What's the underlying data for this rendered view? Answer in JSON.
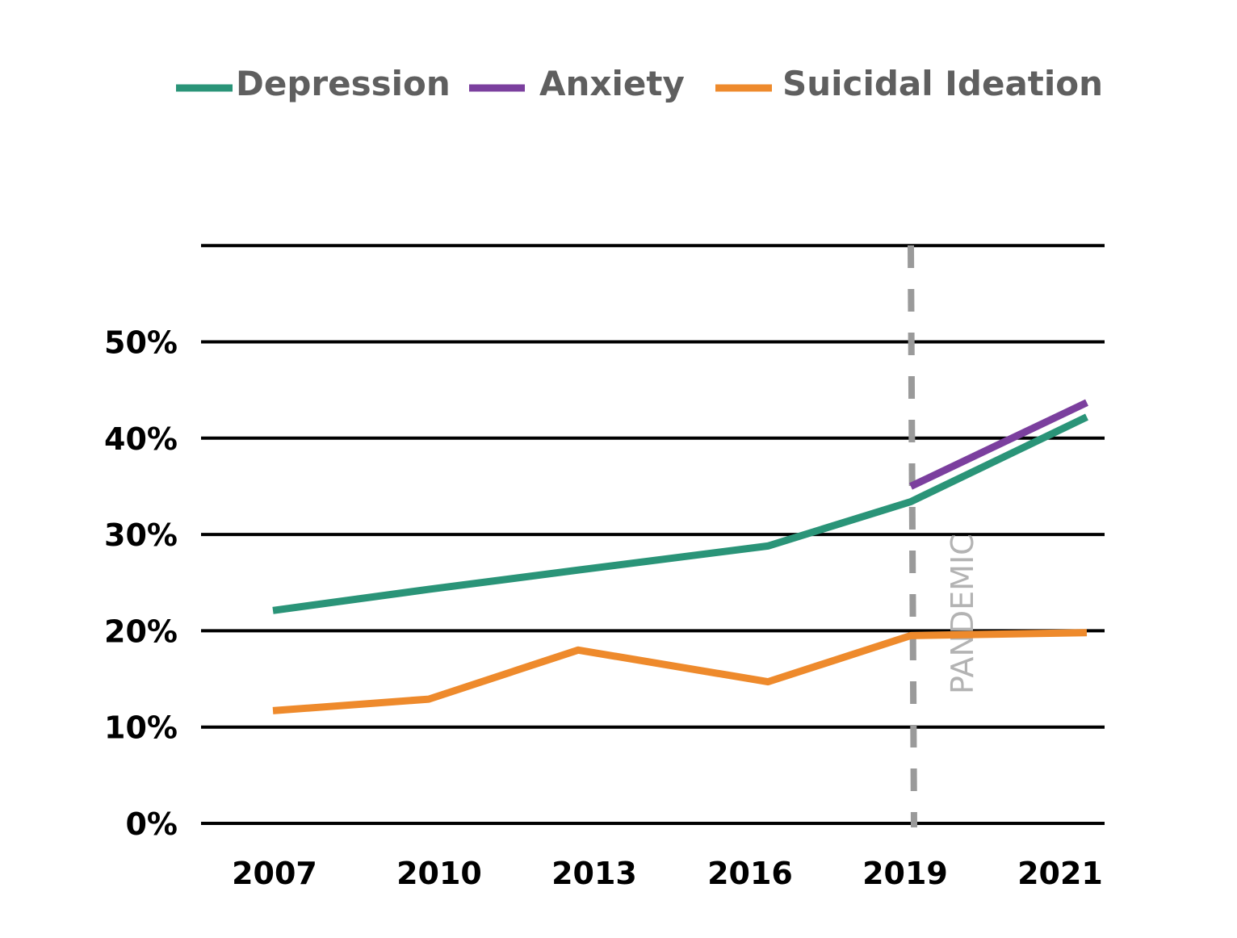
{
  "chart_data": {
    "type": "line",
    "title": "",
    "xlabel": "",
    "ylabel": "",
    "x_ticks": [
      "2007",
      "2010",
      "2013",
      "2016",
      "2019",
      "2021"
    ],
    "y_ticks": [
      "0%",
      "10%",
      "20%",
      "30%",
      "40%",
      "50%"
    ],
    "ylim": [
      0,
      60
    ],
    "grid": true,
    "legend_position": "top",
    "colors": {
      "depression": "#2a9478",
      "anxiety": "#7b3f9e",
      "suicidal_ideation": "#ee8a2c",
      "pandemic_line": "#9a9a9a",
      "gridline": "#000000"
    },
    "series": [
      {
        "key": "depression",
        "name": "Depression",
        "color": "#2a9478",
        "points": [
          [
            2007,
            22.1
          ],
          [
            2010,
            24.3
          ],
          [
            2013,
            26.3
          ],
          [
            2016,
            28.8
          ],
          [
            2019,
            33.4
          ],
          [
            2021,
            42.2
          ]
        ]
      },
      {
        "key": "anxiety",
        "name": "Anxiety",
        "color": "#7b3f9e",
        "points": [
          [
            2019,
            35.0
          ],
          [
            2021,
            43.7
          ]
        ]
      },
      {
        "key": "suicidal_ideation",
        "name": "Suicidal Ideation",
        "color": "#ee8a2c",
        "points": [
          [
            2007,
            11.7
          ],
          [
            2010,
            12.9
          ],
          [
            2013,
            18.0
          ],
          [
            2016,
            14.7
          ],
          [
            2019,
            19.5
          ],
          [
            2021,
            19.8
          ]
        ]
      }
    ],
    "annotations": [
      {
        "type": "vertical-dashed-line",
        "x": 2019,
        "label": "PANDEMIC"
      }
    ]
  }
}
